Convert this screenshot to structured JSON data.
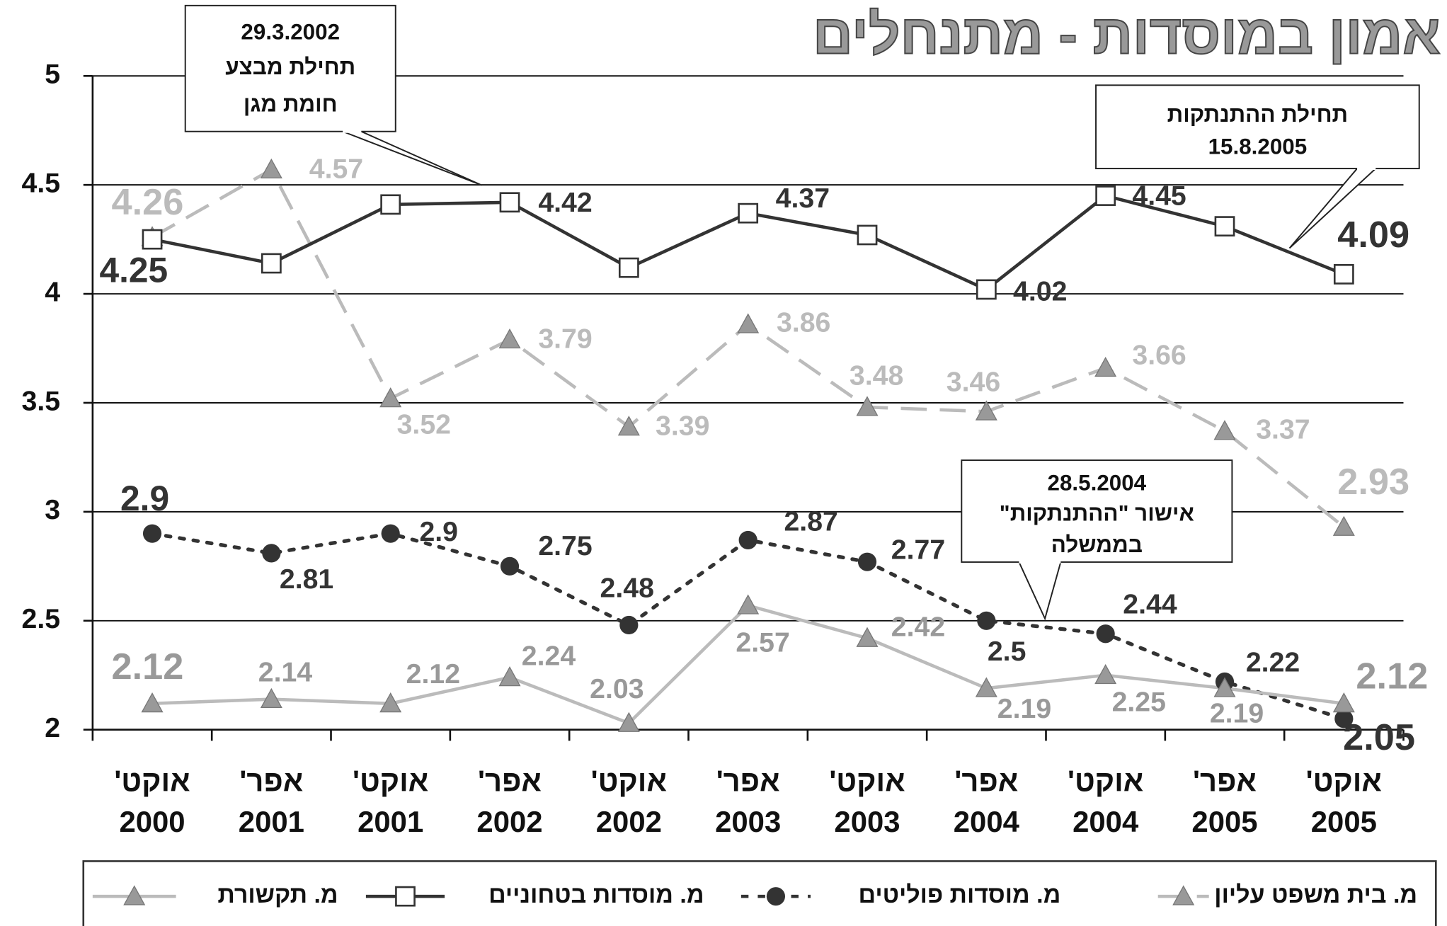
{
  "chart_data": {
    "type": "line",
    "title": "אמון במוסדות - מתנחלים",
    "categories": [
      [
        "אוקט'",
        "2000"
      ],
      [
        "אפר'",
        "2001"
      ],
      [
        "אוקט'",
        "2001"
      ],
      [
        "אפר'",
        "2002"
      ],
      [
        "אוקט'",
        "2002"
      ],
      [
        "אפר'",
        "2003"
      ],
      [
        "אוקט'",
        "2003"
      ],
      [
        "אפר'",
        "2004"
      ],
      [
        "אוקט'",
        "2004"
      ],
      [
        "אפר'",
        "2005"
      ],
      [
        "אוקט'",
        "2005"
      ]
    ],
    "series": [
      {
        "name": "מ. בית משפט עליון",
        "color": "#bbbbbb",
        "marker": "triangle",
        "dash": "dashed",
        "values": [
          4.26,
          4.57,
          3.52,
          3.79,
          3.39,
          3.86,
          3.48,
          3.46,
          3.66,
          3.37,
          2.93
        ]
      },
      {
        "name": "מ. מוסדות פוליטים",
        "color": "#333333",
        "marker": "circle",
        "dash": "dotted",
        "values": [
          2.9,
          2.81,
          2.9,
          2.75,
          2.48,
          2.87,
          2.77,
          2.5,
          2.44,
          2.22,
          2.05
        ]
      },
      {
        "name": "מ. מוסדות בטחוניים",
        "color": "#333333",
        "marker": "square",
        "dash": "solid",
        "values": [
          4.25,
          4.14,
          4.41,
          4.42,
          4.12,
          4.37,
          4.27,
          4.02,
          4.45,
          4.31,
          4.09
        ],
        "value_labels": [
          "4.25",
          null,
          null,
          "4.42",
          null,
          "4.37",
          null,
          "4.02",
          "4.45",
          null,
          "4.09"
        ]
      },
      {
        "name": "מ. תקשורת",
        "color": "#bbbbbb",
        "marker": "triangle",
        "dash": "solid",
        "values": [
          2.12,
          2.14,
          2.12,
          2.24,
          2.03,
          2.57,
          2.42,
          2.19,
          2.25,
          2.19,
          2.12
        ]
      }
    ],
    "ylim": [
      2,
      5
    ],
    "yticks": [
      2,
      2.5,
      3,
      3.5,
      4,
      4.5,
      5
    ],
    "grid": true,
    "legend": "bottom",
    "annotations": [
      {
        "text": [
          "29.3.2002",
          "תחילת מבצע",
          "חומת מגן"
        ]
      },
      {
        "text": [
          "תחילת ההתנתקות",
          "15.8.2005"
        ]
      },
      {
        "text": [
          "28.5.2004",
          "אישור \"ההתנתקות\"",
          "בממשלה"
        ]
      }
    ]
  }
}
